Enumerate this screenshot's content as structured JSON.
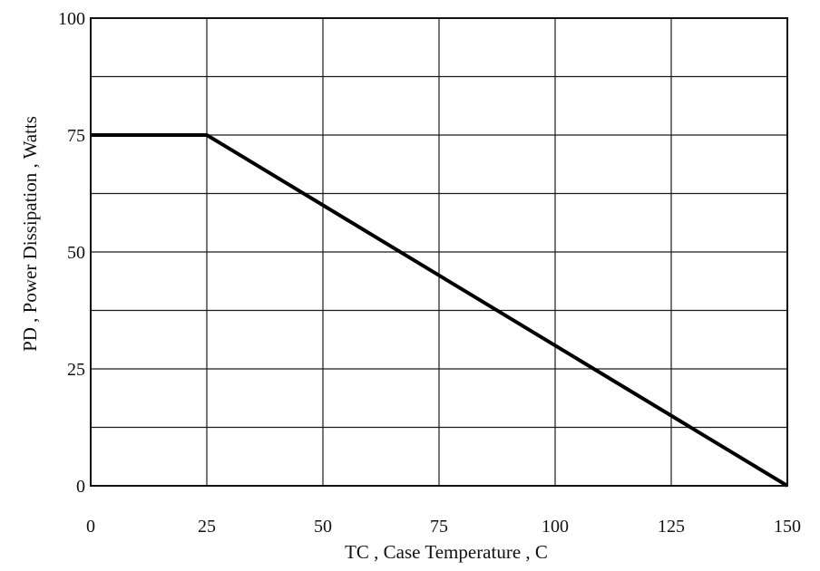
{
  "chart_data": {
    "type": "line",
    "title": "",
    "xlabel": "TC , Case Temperature , C",
    "ylabel": "PD , Power Dissipation ,   Watts",
    "xlim": [
      0,
      150
    ],
    "ylim": [
      0,
      100
    ],
    "x_ticks": [
      0,
      25,
      50,
      75,
      100,
      125,
      150
    ],
    "y_ticks": [
      0,
      25,
      50,
      75,
      100
    ],
    "x_grid_step": 25,
    "y_grid_step": 12.5,
    "grid": true,
    "legend": "none",
    "series": [
      {
        "x": [
          0,
          25,
          150
        ],
        "y": [
          75,
          75,
          0
        ]
      }
    ]
  }
}
